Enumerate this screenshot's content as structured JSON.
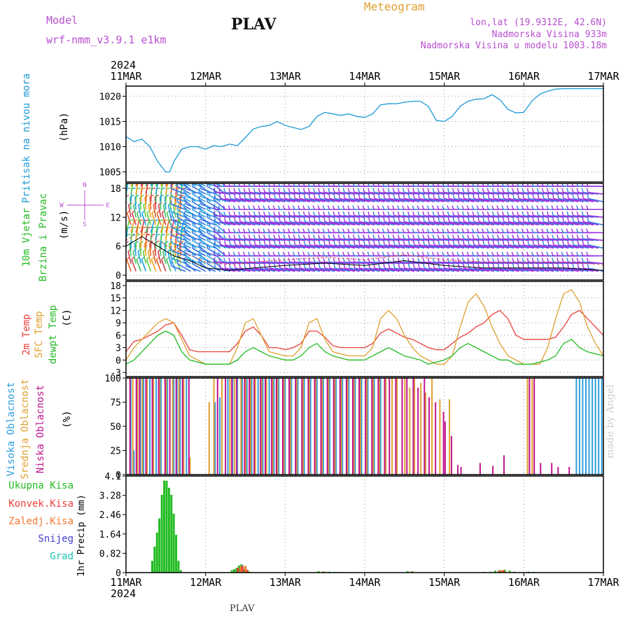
{
  "header": {
    "model_label": "Model",
    "model_name": "wrf-nmm_v3.9.1 e1km",
    "station": "PLAV",
    "product": "Meteogram",
    "coords": "lon,lat (19.9312E, 42.6N)",
    "elevation": "Nadmorska Visina 933m",
    "model_elevation": "Nadmorska Visina u modelu 1003.18m",
    "signature": "made by Angel",
    "footer_station": "PLAV"
  },
  "colors": {
    "pressure": "#1e9bd7",
    "temp2m": "#e8413c",
    "sfc_temp": "#e0a030",
    "dewpt": "#22bb22",
    "high_cloud": "#2d9ee0",
    "mid_cloud": "#e0a030",
    "low_cloud": "#c0158f",
    "precip_total": "#22bb22",
    "precip_conv": "#e8413c",
    "precip_frozen": "#f07830",
    "snow": "#4040d0",
    "hail": "#20c0b0",
    "purple_text": "#b84fd0",
    "orange_text": "#e0a030"
  },
  "time_axis": {
    "year": "2024",
    "labels": [
      "11MAR",
      "12MAR",
      "13MAR",
      "14MAR",
      "15MAR",
      "16MAR",
      "17MAR"
    ]
  },
  "chart_data": [
    {
      "type": "line",
      "id": "pressure",
      "ylabel": "Pritisak na nivou mora",
      "unit": "(hPa)",
      "ylim": [
        1003,
        1022
      ],
      "yticks": [
        1005,
        1010,
        1015,
        1020
      ],
      "x": [
        0,
        0.1,
        0.2,
        0.3,
        0.4,
        0.5,
        0.55,
        0.6,
        0.7,
        0.8,
        0.9,
        1.0,
        1.1,
        1.2,
        1.3,
        1.4,
        1.5,
        1.6,
        1.7,
        1.8,
        1.9,
        2.0,
        2.1,
        2.2,
        2.3,
        2.4,
        2.5,
        2.6,
        2.7,
        2.8,
        2.9,
        3.0,
        3.1,
        3.2,
        3.3,
        3.4,
        3.5,
        3.6,
        3.7,
        3.8,
        3.9,
        4.0,
        4.1,
        4.2,
        4.3,
        4.4,
        4.5,
        4.6,
        4.7,
        4.8,
        4.9,
        5.0,
        5.1,
        5.2,
        5.3,
        5.4,
        5.5,
        5.6,
        5.7,
        5.8,
        5.9,
        6.0
      ],
      "series": [
        {
          "key": "pressure",
          "values": [
            1012,
            1011,
            1011.5,
            1010,
            1007,
            1005,
            1005,
            1007,
            1009.5,
            1010,
            1010,
            1009.5,
            1010.2,
            1010,
            1010.5,
            1010.2,
            1011.8,
            1013.5,
            1014,
            1014.2,
            1015,
            1014.2,
            1013.8,
            1013.4,
            1014,
            1016,
            1016.8,
            1016.5,
            1016.2,
            1016.5,
            1016,
            1015.8,
            1016.5,
            1018.3,
            1018.5,
            1018.5,
            1018.8,
            1019,
            1019,
            1018,
            1015.2,
            1015,
            1016,
            1018,
            1019,
            1019.4,
            1019.5,
            1020.3,
            1019.3,
            1017.4,
            1016.7,
            1016.8,
            1019,
            1020.4,
            1021,
            1021.4,
            1021.5,
            1021.5,
            1021.5,
            1021.5,
            1021.5,
            1021.5
          ]
        }
      ]
    },
    {
      "type": "scatter",
      "id": "wind",
      "title": "10m Vjetar",
      "ylabel": "Brzina i Pravac",
      "unit": "(m/s)",
      "ylim": [
        -1,
        19
      ],
      "yticks": [
        0,
        6,
        12,
        18
      ],
      "compass": {
        "n": "N",
        "s": "S",
        "e": "E",
        "w": "W"
      },
      "description": "wind barbs grid"
    },
    {
      "type": "line",
      "id": "temperature",
      "ylabel": [
        "2m Temp",
        "SFC Temp",
        "dewpt Temp"
      ],
      "unit": "(C)",
      "ylim": [
        -4,
        19
      ],
      "yticks": [
        -3,
        0,
        3,
        6,
        9,
        12,
        15,
        18
      ],
      "x": [
        0,
        0.1,
        0.2,
        0.3,
        0.4,
        0.5,
        0.6,
        0.7,
        0.8,
        0.9,
        1.0,
        1.1,
        1.2,
        1.3,
        1.4,
        1.5,
        1.6,
        1.7,
        1.8,
        1.9,
        2.0,
        2.1,
        2.2,
        2.3,
        2.4,
        2.5,
        2.6,
        2.7,
        2.8,
        2.9,
        3.0,
        3.1,
        3.2,
        3.3,
        3.4,
        3.5,
        3.6,
        3.7,
        3.8,
        3.9,
        4.0,
        4.1,
        4.2,
        4.3,
        4.4,
        4.5,
        4.6,
        4.7,
        4.8,
        4.9,
        5.0,
        5.1,
        5.2,
        5.3,
        5.4,
        5.5,
        5.6,
        5.7,
        5.8,
        5.9,
        6.0
      ],
      "series": [
        {
          "key": "temp2m",
          "name": "2m Temp",
          "values": [
            2,
            4.5,
            5,
            6,
            7,
            8.5,
            9,
            6,
            2.5,
            2,
            2,
            2,
            2,
            2,
            4,
            7,
            8,
            6,
            3,
            3,
            2.5,
            3,
            4,
            7,
            7,
            5.5,
            3.5,
            3,
            3,
            3,
            3,
            4,
            6.5,
            7.5,
            6.5,
            5.5,
            5,
            4,
            3,
            2.5,
            2.5,
            4,
            5.5,
            6.5,
            8,
            9,
            11,
            12,
            10,
            6,
            5,
            5,
            5,
            5,
            5.5,
            8,
            11,
            12,
            10,
            8,
            6
          ]
        },
        {
          "key": "sfc_temp",
          "name": "SFC Temp",
          "values": [
            0,
            3,
            5,
            7,
            9,
            10,
            9,
            5,
            1,
            0,
            -1,
            -1,
            -1,
            -1,
            3,
            9,
            10,
            6,
            2,
            1.5,
            1,
            1,
            3,
            9,
            10,
            5,
            2,
            1.5,
            1,
            1,
            1,
            3,
            10,
            12,
            10,
            6,
            3,
            1,
            0,
            -1,
            -1,
            1,
            8,
            14,
            16,
            13,
            8,
            4,
            1,
            0,
            -1,
            -1,
            -1,
            3,
            10,
            16,
            17,
            14,
            8,
            4,
            1
          ]
        },
        {
          "key": "dewpt",
          "name": "dewpt Temp",
          "values": [
            -1,
            0,
            2,
            4,
            6,
            7,
            6,
            2,
            0,
            -0.5,
            -1,
            -1,
            -1,
            -1,
            0,
            2,
            3,
            2,
            1,
            0.5,
            0,
            0,
            1,
            3,
            4,
            2,
            1,
            0.5,
            0,
            0,
            0,
            1,
            2,
            3,
            2,
            1,
            0.5,
            0,
            -1,
            -0.5,
            0,
            1,
            3,
            4,
            3,
            2,
            1,
            0,
            0,
            -1,
            -1,
            -1,
            -0.5,
            0,
            1,
            4,
            5,
            3,
            2,
            1.5,
            1
          ]
        }
      ]
    },
    {
      "type": "bar",
      "id": "clouds",
      "ylabel": [
        "Visoka Oblacnost",
        "Srednja Oblacnost",
        "Niska Oblacnost"
      ],
      "unit": "(%)",
      "ylim": [
        0,
        100
      ],
      "yticks": [
        0,
        25,
        50,
        75,
        100
      ],
      "series": [
        {
          "key": "high_cloud",
          "name": "Visoka Oblacnost",
          "x": [
            0.06,
            0.1,
            0.18,
            0.22,
            0.3,
            0.38,
            0.44,
            0.52,
            0.6,
            0.64,
            0.68,
            0.76,
            1.12,
            1.18,
            1.28,
            1.34,
            1.4,
            1.46,
            1.52,
            1.58,
            1.66,
            1.72,
            1.8,
            1.86,
            1.92,
            2.0,
            2.08,
            2.16,
            2.24,
            2.32,
            2.4,
            2.48,
            2.56,
            2.64,
            2.72,
            2.8,
            2.88,
            2.96,
            3.04,
            3.12,
            3.2,
            5.66,
            5.7,
            5.74,
            5.78,
            5.82,
            5.86,
            5.9,
            5.94,
            5.98
          ],
          "values": [
            100,
            25,
            100,
            100,
            100,
            100,
            100,
            100,
            100,
            100,
            100,
            100,
            75,
            80,
            100,
            100,
            100,
            100,
            100,
            100,
            100,
            100,
            100,
            100,
            100,
            100,
            100,
            100,
            100,
            100,
            100,
            100,
            100,
            100,
            100,
            100,
            100,
            100,
            100,
            100,
            100,
            100,
            100,
            100,
            100,
            100,
            100,
            100,
            100,
            100
          ]
        },
        {
          "key": "mid_cloud",
          "name": "Srednja Oblacnost",
          "x": [
            0.08,
            0.14,
            0.2,
            0.26,
            0.34,
            0.42,
            0.5,
            0.58,
            0.66,
            0.72,
            0.8,
            1.04,
            1.1,
            1.2,
            1.3,
            1.36,
            1.44,
            1.5,
            1.56,
            1.62,
            1.7,
            1.76,
            1.84,
            1.9,
            1.98,
            2.06,
            2.14,
            2.22,
            2.3,
            2.38,
            2.46,
            2.54,
            2.62,
            2.7,
            2.78,
            2.86,
            2.94,
            3.02,
            3.1,
            3.18,
            3.26,
            3.34,
            3.4,
            3.5,
            3.56,
            3.62,
            3.7,
            3.76,
            3.84,
            3.94,
            4.06,
            5.04,
            5.1
          ],
          "values": [
            100,
            100,
            100,
            100,
            100,
            100,
            100,
            100,
            100,
            100,
            18,
            75,
            100,
            100,
            100,
            100,
            100,
            100,
            100,
            100,
            100,
            100,
            100,
            100,
            100,
            100,
            100,
            100,
            100,
            100,
            100,
            100,
            100,
            100,
            100,
            100,
            100,
            100,
            100,
            100,
            100,
            100,
            100,
            100,
            90,
            100,
            95,
            85,
            100,
            78,
            78,
            100,
            100
          ]
        },
        {
          "key": "low_cloud",
          "name": "Niska Oblacnost",
          "x": [
            0.04,
            0.12,
            0.16,
            0.24,
            0.32,
            0.4,
            0.48,
            0.54,
            0.62,
            0.7,
            0.78,
            1.14,
            1.24,
            1.32,
            1.38,
            1.48,
            1.54,
            1.6,
            1.68,
            1.74,
            1.82,
            1.88,
            1.96,
            2.04,
            2.12,
            2.2,
            2.28,
            2.36,
            2.44,
            2.52,
            2.6,
            2.68,
            2.76,
            2.84,
            2.92,
            3.0,
            3.08,
            3.16,
            3.24,
            3.3,
            3.38,
            3.46,
            3.52,
            3.6,
            3.66,
            3.74,
            3.8,
            3.88,
            3.98,
            4.0,
            4.08,
            4.16,
            4.2,
            4.44,
            4.6,
            4.74,
            5.06,
            5.12,
            5.2,
            5.34,
            5.42,
            5.56
          ],
          "values": [
            100,
            100,
            100,
            100,
            100,
            100,
            100,
            100,
            100,
            100,
            100,
            100,
            100,
            100,
            100,
            100,
            100,
            100,
            100,
            100,
            100,
            100,
            100,
            100,
            100,
            100,
            100,
            100,
            100,
            100,
            100,
            100,
            100,
            100,
            100,
            100,
            100,
            100,
            100,
            100,
            100,
            100,
            100,
            100,
            90,
            100,
            80,
            75,
            65,
            55,
            40,
            10,
            8,
            12,
            9,
            20,
            100,
            100,
            12,
            12,
            8,
            8
          ]
        }
      ]
    },
    {
      "type": "bar",
      "id": "precip",
      "ylabel": "1hr Precip",
      "unit": "(mm)",
      "ylim": [
        0,
        4.1
      ],
      "yticks": [
        0,
        0.82,
        1.64,
        2.46,
        3.28,
        4.1
      ],
      "legend": [
        "Ukupna Kisa",
        "Konvek.Kisa",
        "Zaledj.Kisa",
        "Snijeg",
        "Grad"
      ],
      "series": [
        {
          "key": "precip_total",
          "name": "Ukupna Kisa",
          "x": [
            0.33,
            0.36,
            0.39,
            0.42,
            0.45,
            0.48,
            0.51,
            0.54,
            0.57,
            0.6,
            0.63,
            0.66,
            0.69,
            1.33,
            1.36,
            1.39,
            1.42,
            1.45,
            1.48,
            1.51,
            1.54,
            1.57,
            2.42,
            2.48,
            2.56,
            2.62,
            2.68,
            2.74,
            3.54,
            3.6,
            4.5,
            4.58,
            4.64,
            4.7,
            4.76,
            4.82,
            4.88,
            5.06,
            5.12
          ],
          "values": [
            0.5,
            1.1,
            1.7,
            2.3,
            3.3,
            3.9,
            3.9,
            3.6,
            3.3,
            2.5,
            1.6,
            0.5,
            0.1,
            0.1,
            0.15,
            0.2,
            0.3,
            0.35,
            0.15,
            0.08,
            0.05,
            0.03,
            0.06,
            0.05,
            0.04,
            0.03,
            0.03,
            0.02,
            0.06,
            0.05,
            0.03,
            0.04,
            0.08,
            0.1,
            0.12,
            0.08,
            0.04,
            0.04,
            0.03
          ]
        },
        {
          "key": "precip_conv",
          "name": "Konvek.Kisa",
          "x": [
            1.4,
            1.46,
            1.52,
            2.5,
            3.58,
            4.68,
            4.74
          ],
          "values": [
            0.2,
            0.3,
            0.12,
            0.03,
            0.04,
            0.08,
            0.1
          ]
        },
        {
          "key": "precip_frozen",
          "name": "Zaledj.Kisa",
          "x": [
            1.43,
            1.49,
            4.71
          ],
          "values": [
            0.25,
            0.28,
            0.1
          ]
        }
      ]
    }
  ]
}
